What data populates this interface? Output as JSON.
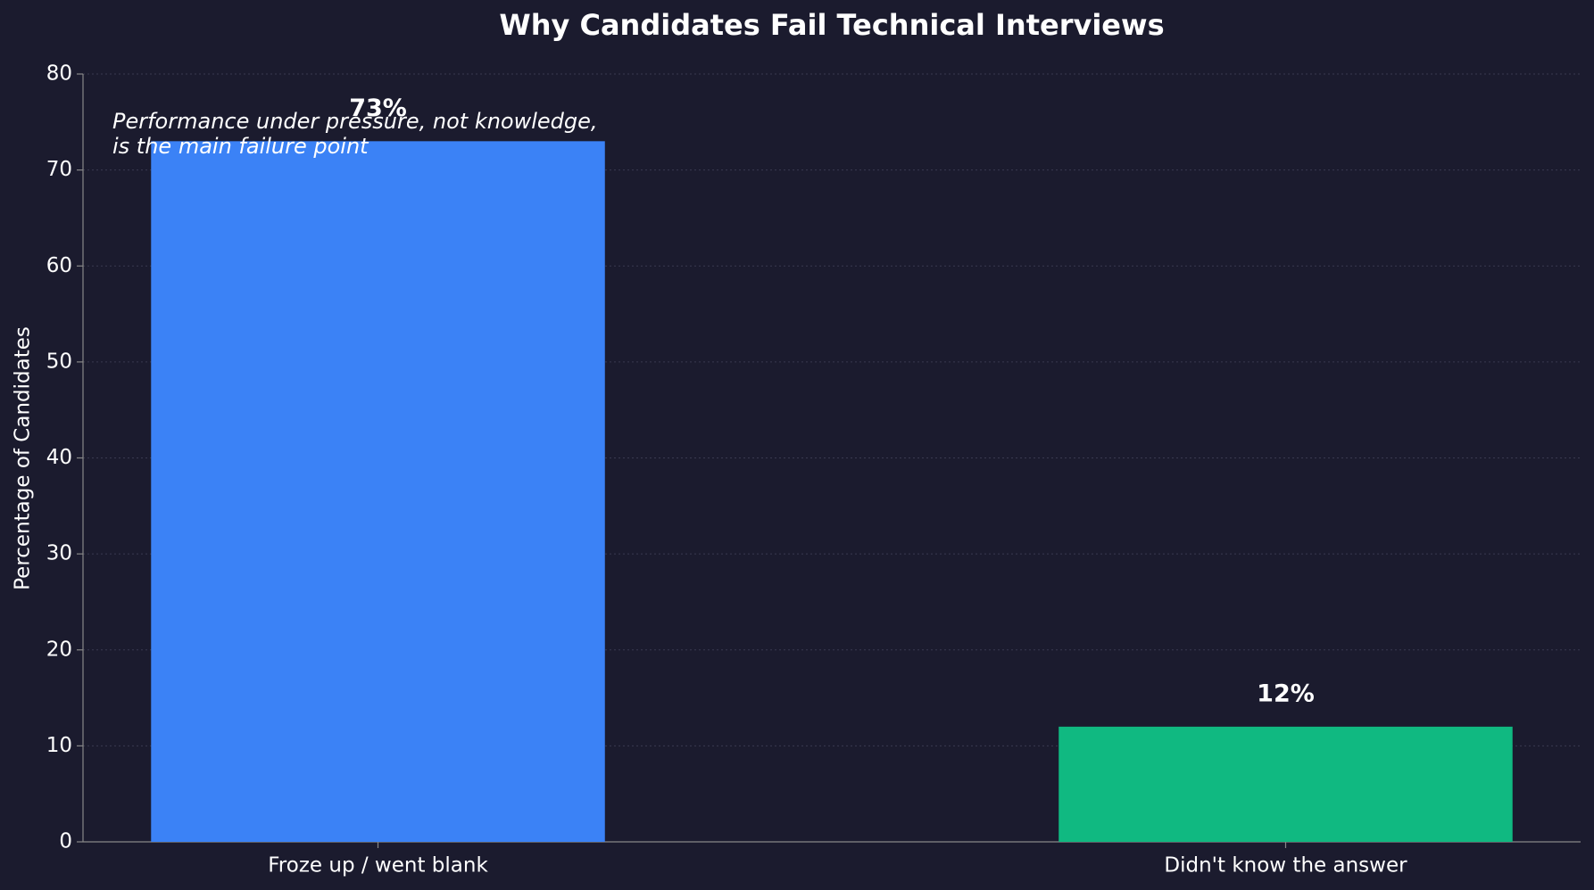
{
  "chart_data": {
    "type": "bar",
    "title": "Why Candidates Fail Technical Interviews",
    "y_label": "Percentage of Candidates",
    "categories": [
      "Froze up / went blank",
      "Didn't know the answer"
    ],
    "values": [
      73,
      12
    ],
    "value_labels": [
      "73%",
      "12%"
    ],
    "colors": [
      "#3b82f6",
      "#10b981"
    ],
    "annotation": [
      "Performance under pressure, not knowledge,",
      "is the main failure point"
    ],
    "ylim": [
      0,
      80
    ],
    "yticks": [
      0,
      10,
      20,
      30,
      40,
      50,
      60,
      70,
      80
    ],
    "grid": true
  }
}
